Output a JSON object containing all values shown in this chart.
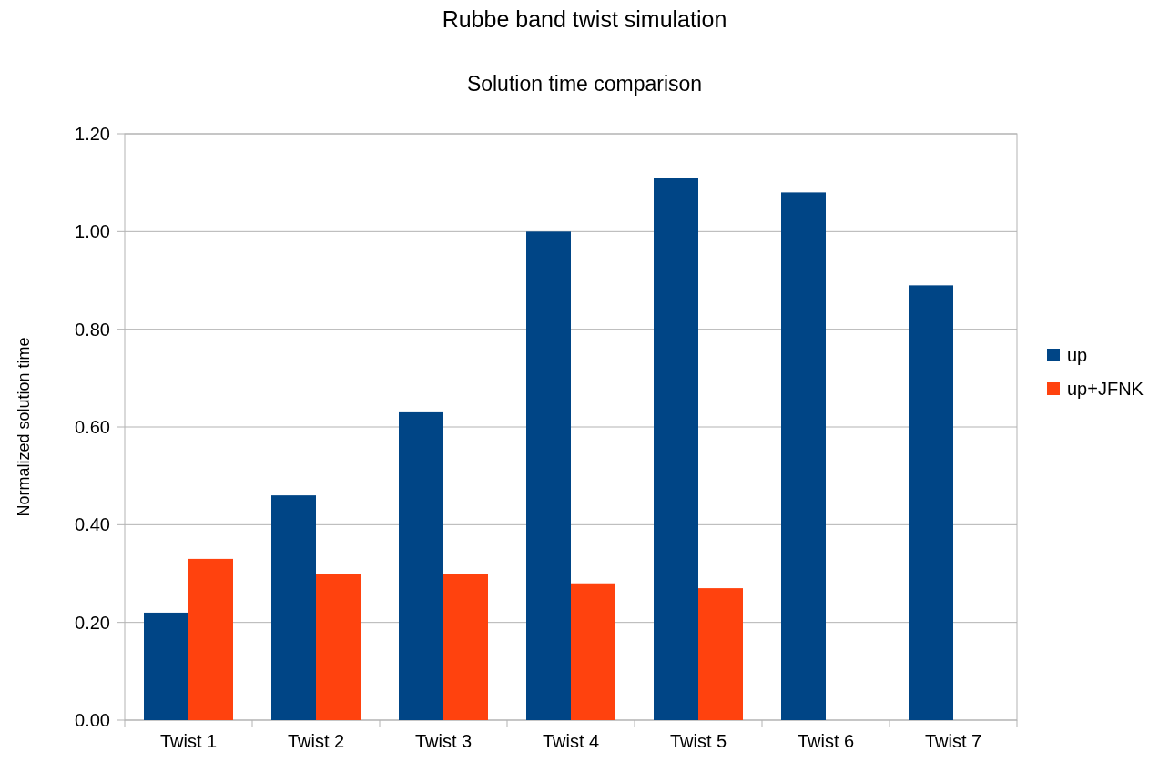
{
  "chart_data": {
    "type": "bar",
    "title": "Rubbe band twist simulation",
    "subtitle": "Solution time comparison",
    "ylabel": "Normalized solution time",
    "categories": [
      "Twist 1",
      "Twist 2",
      "Twist 3",
      "Twist 4",
      "Twist 5",
      "Twist 6",
      "Twist 7"
    ],
    "series": [
      {
        "name": "up",
        "color": "#004586",
        "values": [
          0.22,
          0.46,
          0.63,
          1.0,
          1.11,
          1.08,
          0.89
        ]
      },
      {
        "name": "up+JFNK",
        "color": "#ff420e",
        "values": [
          0.33,
          0.3,
          0.3,
          0.28,
          0.27,
          null,
          null
        ]
      }
    ],
    "ylim": [
      0,
      1.2
    ],
    "yticks": [
      {
        "value": 0,
        "label": "0.00"
      },
      {
        "value": 0.2,
        "label": "0.20"
      },
      {
        "value": 0.4,
        "label": "0.40"
      },
      {
        "value": 0.6,
        "label": "0.60"
      },
      {
        "value": 0.8,
        "label": "0.80"
      },
      {
        "value": 1.0,
        "label": "1.00"
      },
      {
        "value": 1.2,
        "label": "1.20"
      }
    ],
    "grid": "y",
    "legend": "right"
  }
}
